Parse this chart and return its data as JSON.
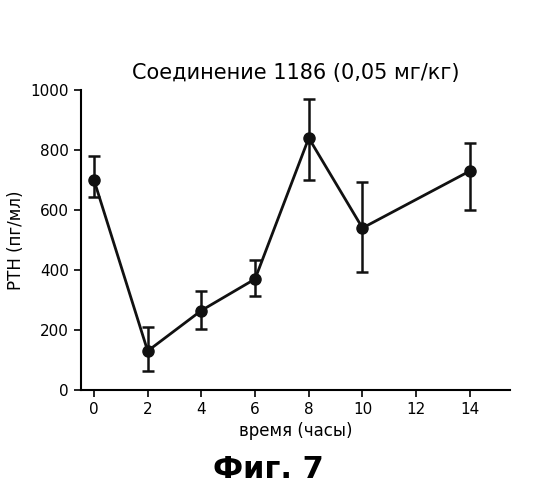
{
  "title": "Соединение 1186 (0,05 мг/кг)",
  "xlabel": "время (часы)",
  "ylabel": "РТН (пг/мл)",
  "caption": "Фиг. 7",
  "x": [
    0,
    2,
    4,
    6,
    8,
    10,
    14
  ],
  "y": [
    700,
    130,
    265,
    370,
    840,
    540,
    730
  ],
  "yerr_upper": [
    80,
    80,
    65,
    65,
    130,
    155,
    95
  ],
  "yerr_lower": [
    55,
    65,
    60,
    55,
    140,
    145,
    130
  ],
  "xlim": [
    -0.5,
    15.5
  ],
  "ylim": [
    0,
    1000
  ],
  "xticks": [
    0,
    2,
    4,
    6,
    8,
    10,
    12,
    14
  ],
  "yticks": [
    0,
    200,
    400,
    600,
    800,
    1000
  ],
  "line_color": "#111111",
  "marker_color": "#111111",
  "marker_size": 8,
  "line_width": 2.0,
  "bg_color": "#ffffff",
  "title_fontsize": 15,
  "label_fontsize": 12,
  "tick_fontsize": 11,
  "caption_fontsize": 22
}
